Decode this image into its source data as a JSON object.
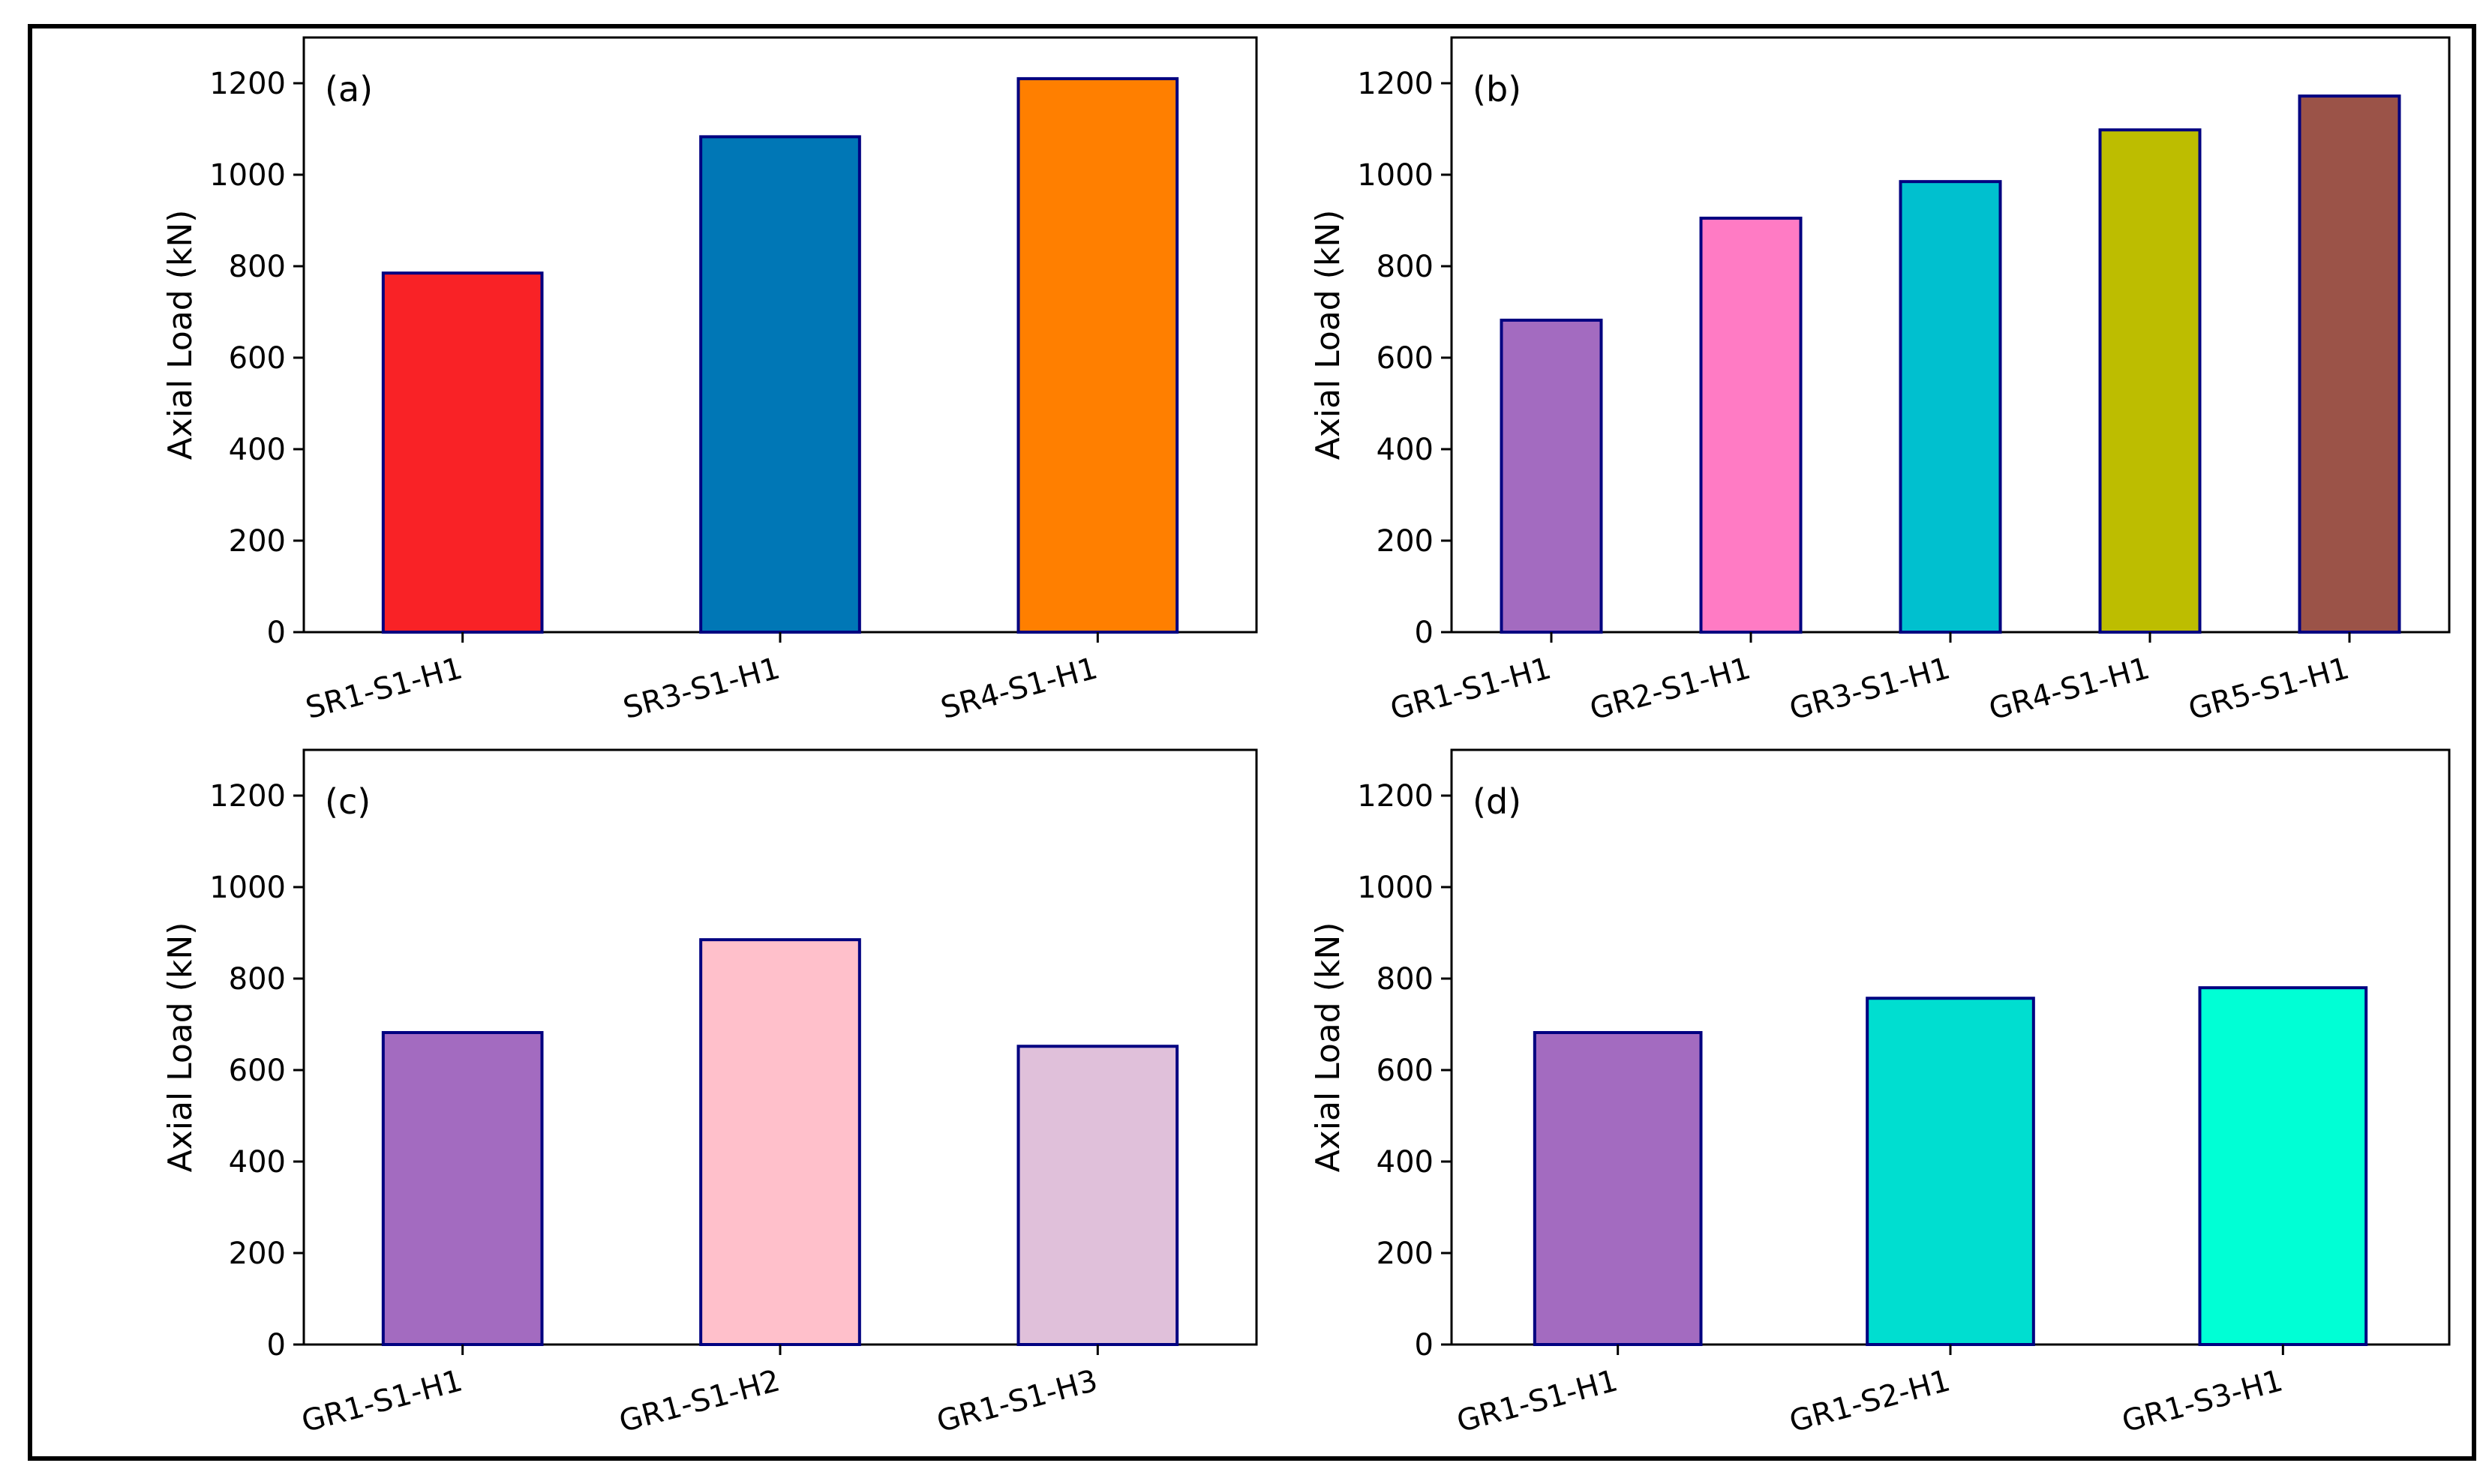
{
  "chart_data": [
    {
      "type": "bar",
      "panel_label": "(a)",
      "ylabel": "Axial Load (kN)",
      "ylim": [
        0,
        1300
      ],
      "yticks": [
        0,
        200,
        400,
        600,
        800,
        1000,
        1200
      ],
      "categories": [
        "SR1-S1-H1",
        "SR3-S1-H1",
        "SR4-S1-H1"
      ],
      "values": [
        785,
        1083,
        1210
      ],
      "colors": [
        "#f92226",
        "#0077b6",
        "#ff7f00"
      ],
      "edge_color": "#000080"
    },
    {
      "type": "bar",
      "panel_label": "(b)",
      "ylabel": "Axial Load (kN)",
      "ylim": [
        0,
        1300
      ],
      "yticks": [
        0,
        200,
        400,
        600,
        800,
        1000,
        1200
      ],
      "categories": [
        "GR1-S1-H1",
        "GR2-S1-H1",
        "GR3-S1-H1",
        "GR4-S1-H1",
        "GR5-S1-H1"
      ],
      "values": [
        682,
        905,
        985,
        1098,
        1172
      ],
      "colors": [
        "#a36bc0",
        "#ff7bc4",
        "#00c0cf",
        "#bdbd00",
        "#9b5348"
      ],
      "edge_color": "#000080"
    },
    {
      "type": "bar",
      "panel_label": "(c)",
      "ylabel": "Axial Load (kN)",
      "ylim": [
        0,
        1300
      ],
      "yticks": [
        0,
        200,
        400,
        600,
        800,
        1000,
        1200
      ],
      "categories": [
        "GR1-S1-H1",
        "GR1-S1-H2",
        "GR1-S1-H3"
      ],
      "values": [
        682,
        885,
        652
      ],
      "colors": [
        "#a36bc0",
        "#ffc0cb",
        "#e0c0da"
      ],
      "edge_color": "#000080"
    },
    {
      "type": "bar",
      "panel_label": "(d)",
      "ylabel": "Axial Load (kN)",
      "ylim": [
        0,
        1300
      ],
      "yticks": [
        0,
        200,
        400,
        600,
        800,
        1000,
        1200
      ],
      "categories": [
        "GR1-S1-H1",
        "GR1-S2-H1",
        "GR1-S3-H1"
      ],
      "values": [
        682,
        757,
        780
      ],
      "colors": [
        "#a36bc0",
        "#00ded0",
        "#00ffd5"
      ],
      "edge_color": "#000080"
    }
  ]
}
